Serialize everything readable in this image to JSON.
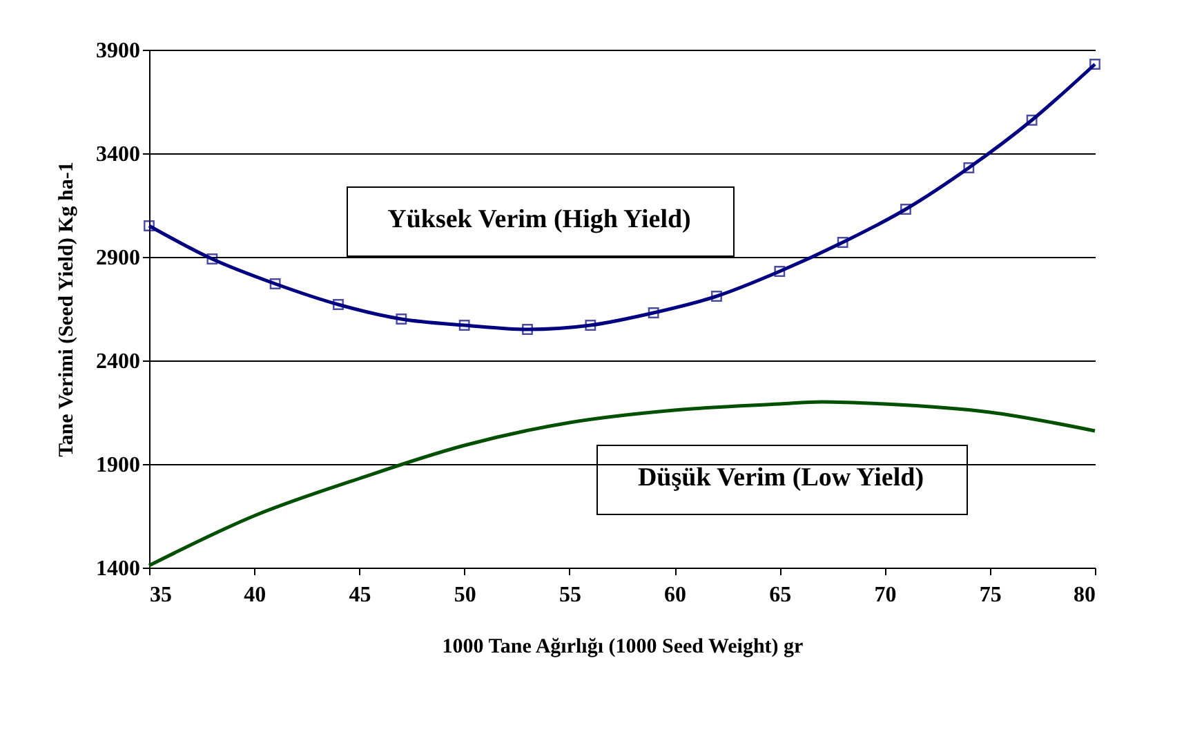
{
  "chart_data": {
    "type": "line",
    "xlabel": "1000 Tane Ağırlığı (1000 Seed Weight) gr",
    "ylabel": "Tane Verimi (Seed Yield) Kg ha-1",
    "xlim": [
      35,
      80
    ],
    "xticks": [
      35,
      40,
      45,
      50,
      55,
      60,
      65,
      70,
      75,
      80
    ],
    "ylim": [
      1400,
      3900
    ],
    "yticks": [
      1400,
      1900,
      2400,
      2900,
      3400,
      3900
    ],
    "grid": "y",
    "legend": false,
    "series": [
      {
        "name": "Yüksek Verim (High Yield)",
        "color": "#000080",
        "marker": "square",
        "x": [
          35,
          38,
          41,
          44,
          47,
          50,
          53,
          56,
          59,
          62,
          65,
          68,
          71,
          74,
          77,
          80
        ],
        "values": [
          3050,
          2890,
          2770,
          2670,
          2600,
          2570,
          2550,
          2570,
          2630,
          2710,
          2830,
          2970,
          3130,
          3330,
          3560,
          3830
        ]
      },
      {
        "name": "Düşük Verim (Low Yield)",
        "color": "#005000",
        "marker": "none",
        "x": [
          35,
          40,
          45,
          50,
          55,
          60,
          65,
          67,
          70,
          75,
          80
        ],
        "values": [
          1410,
          1650,
          1830,
          1990,
          2100,
          2160,
          2190,
          2200,
          2190,
          2150,
          2060
        ]
      }
    ]
  }
}
